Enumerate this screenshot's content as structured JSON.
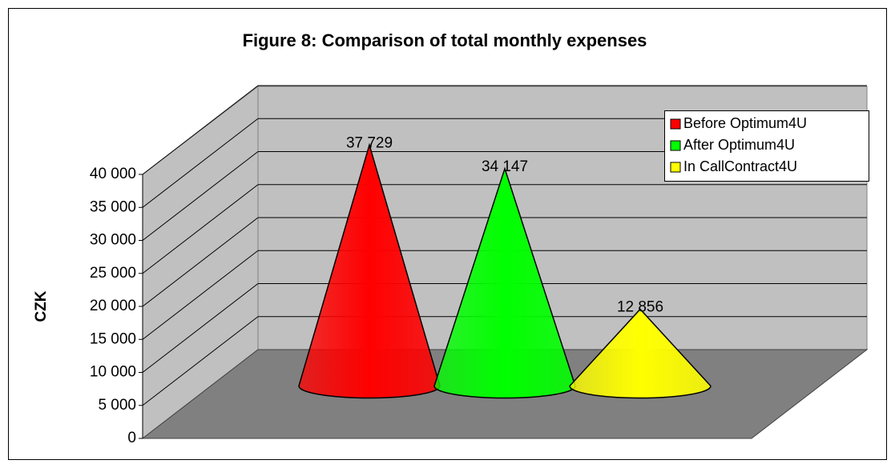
{
  "chart_data": {
    "type": "cone3d",
    "title": "Figure 8: Comparison of total monthly expenses",
    "ylabel": "CZK",
    "ylim": [
      0,
      40000
    ],
    "yticks": [
      0,
      {
        "value": 5000,
        "label": "5 000"
      },
      {
        "value": 10000,
        "label": "10 000"
      },
      {
        "value": 15000,
        "label": "15 000"
      },
      {
        "value": 20000,
        "label": "20 000"
      },
      {
        "value": 25000,
        "label": "25 000"
      },
      {
        "value": 30000,
        "label": "30 000"
      },
      {
        "value": 35000,
        "label": "35 000"
      },
      {
        "value": 40000,
        "label": "40 000"
      }
    ],
    "grid": true,
    "legend": "top-right",
    "series": [
      {
        "name": "Before Optimum4U",
        "color": "#ff0000",
        "values": [
          37729
        ],
        "value_labels": [
          "37 729"
        ]
      },
      {
        "name": "After Optimum4U",
        "color": "#00ff00",
        "values": [
          34147
        ],
        "value_labels": [
          "34 147"
        ]
      },
      {
        "name": "In CallContract4U",
        "color": "#ffff00",
        "values": [
          12856
        ],
        "value_labels": [
          "12 856"
        ]
      }
    ]
  }
}
